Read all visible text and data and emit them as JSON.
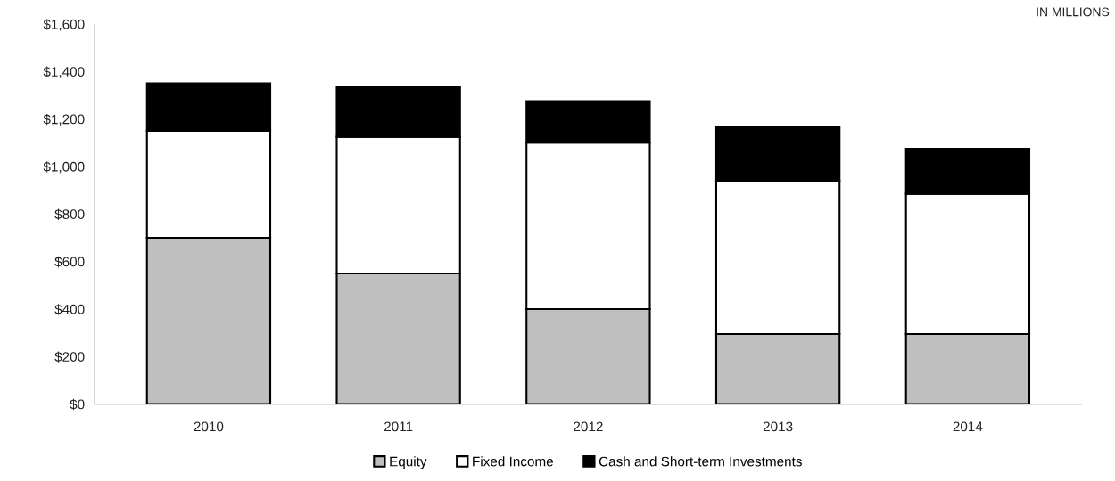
{
  "chart_data": {
    "type": "bar",
    "stacked": true,
    "categories": [
      "2010",
      "2011",
      "2012",
      "2013",
      "2014"
    ],
    "series": [
      {
        "name": "Equity",
        "color": "#bfbfbf",
        "values": [
          700,
          550,
          400,
          295,
          295
        ]
      },
      {
        "name": "Fixed Income",
        "color": "#ffffff",
        "values": [
          450,
          575,
          700,
          645,
          590
        ]
      },
      {
        "name": "Cash and Short-term Investments",
        "color": "#000000",
        "values": [
          200,
          210,
          175,
          225,
          190
        ]
      }
    ],
    "ylim": [
      0,
      1600
    ],
    "yticks": [
      {
        "value": 0,
        "label": "$0"
      },
      {
        "value": 200,
        "label": "$200"
      },
      {
        "value": 400,
        "label": "$400"
      },
      {
        "value": 600,
        "label": "$600"
      },
      {
        "value": 800,
        "label": "$800"
      },
      {
        "value": 1000,
        "label": "$1,000"
      },
      {
        "value": 1200,
        "label": "$1,200"
      },
      {
        "value": 1400,
        "label": "$1,400"
      },
      {
        "value": 1600,
        "label": "$1,600"
      }
    ],
    "grid": false,
    "legend": "bottom",
    "annotations": [
      "IN MILLIONS"
    ]
  }
}
